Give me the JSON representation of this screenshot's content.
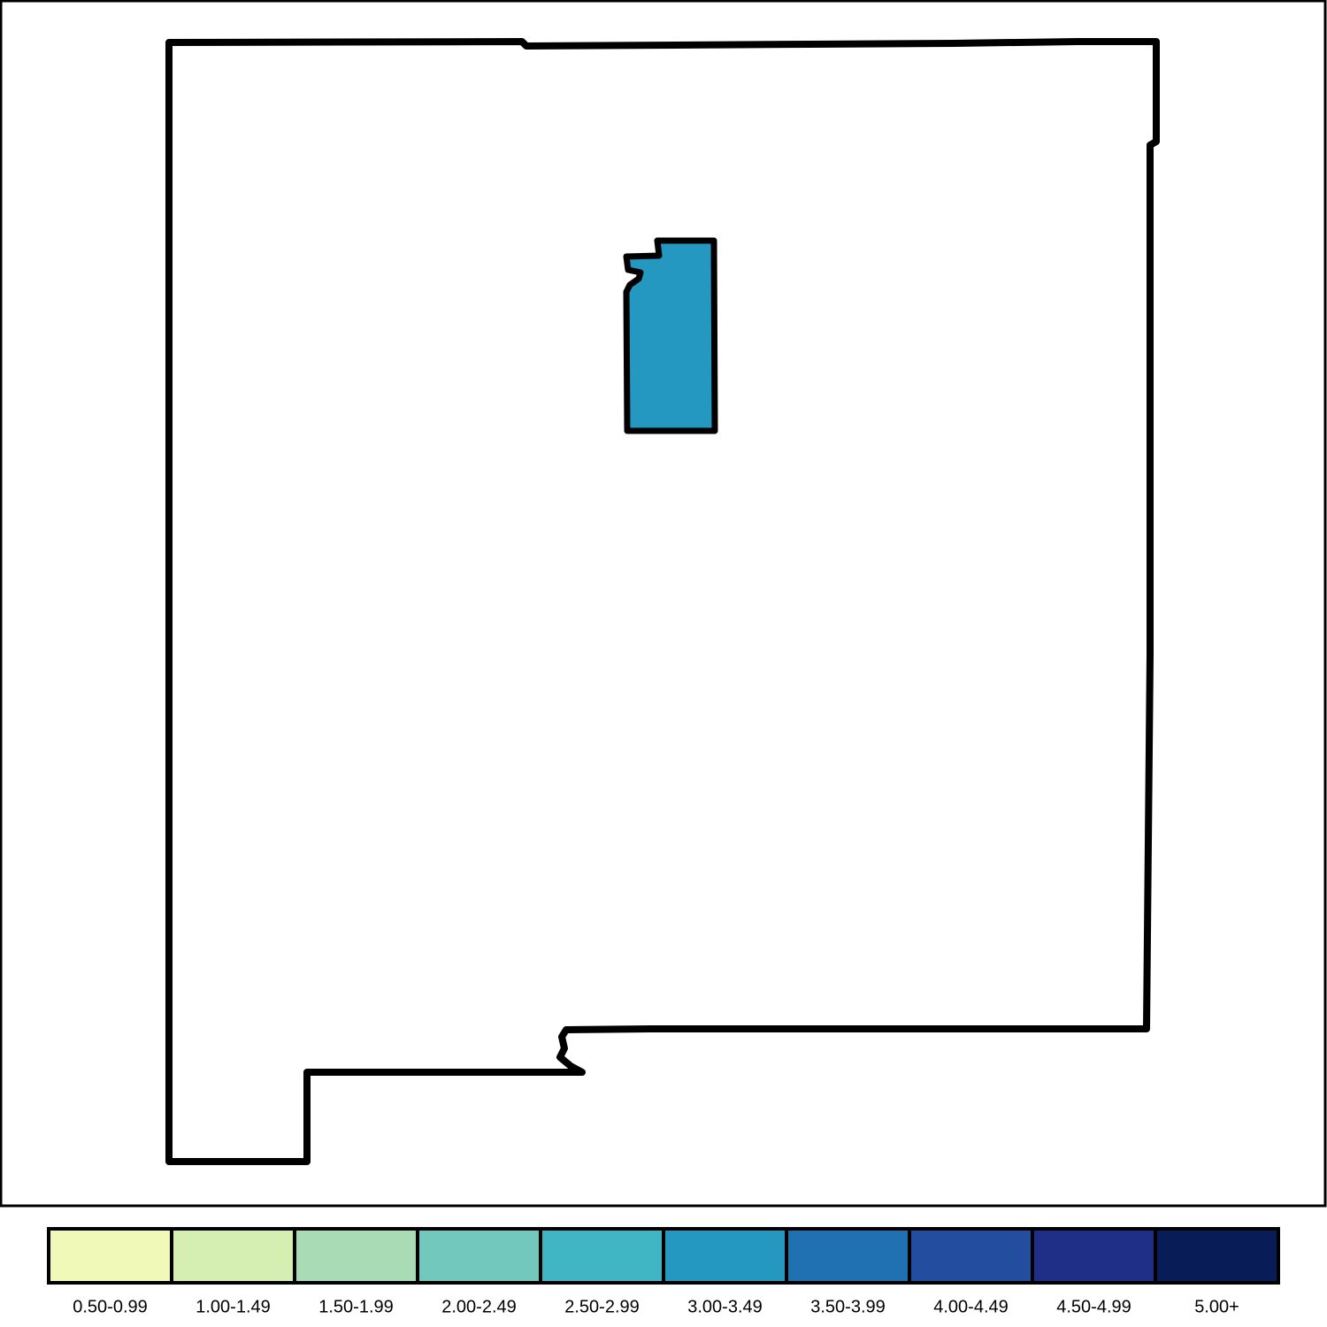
{
  "map": {
    "region_color": "#2498c1"
  },
  "legend": {
    "labels": [
      "0.50-0.99",
      "1.00-1.49",
      "1.50-1.99",
      "2.00-2.49",
      "2.50-2.99",
      "3.00-3.49",
      "3.50-3.99",
      "4.00-4.49",
      "4.50-4.99",
      "5.00+"
    ],
    "colors": [
      "#f1f9b8",
      "#d5efb3",
      "#a9dcb5",
      "#73c8bd",
      "#40b5c4",
      "#2498c1",
      "#2071b1",
      "#234ea0",
      "#1f2e86",
      "#081d58"
    ]
  }
}
